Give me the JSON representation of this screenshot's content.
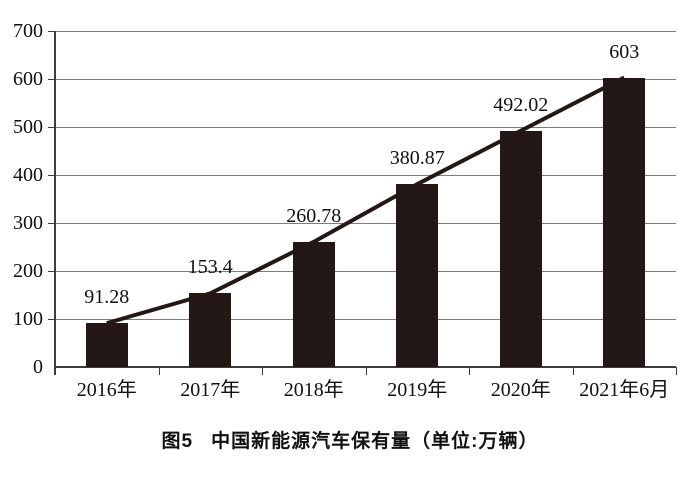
{
  "chart_data": {
    "type": "bar",
    "overlay": "line",
    "categories": [
      "2016年",
      "2017年",
      "2018年",
      "2019年",
      "2020年",
      "2021年6月"
    ],
    "values": [
      91.28,
      153.4,
      260.78,
      380.87,
      492.02,
      603
    ],
    "data_labels": [
      "91.28",
      "153.4",
      "260.78",
      "380.87",
      "492.02",
      "603"
    ],
    "yticks": [
      0,
      100,
      200,
      300,
      400,
      500,
      600,
      700
    ],
    "ylim": [
      0,
      700
    ],
    "grid": true,
    "legend": "none",
    "title": "图5　中国新能源汽车保有量（单位:万辆）",
    "title_parts": {
      "figure_label": "图5",
      "text": "中国新能源汽车保有量（单位:万辆）"
    },
    "bar_color": "#231815",
    "line_color": "#231815",
    "gridline_color": "#7d7d7d",
    "axis_color": "#3c3c3c",
    "text_color": "#111111"
  }
}
